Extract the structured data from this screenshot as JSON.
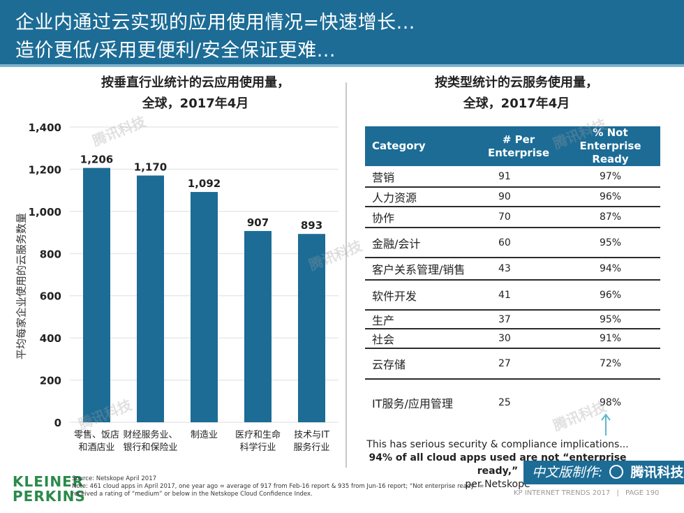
{
  "header": {
    "title_line1": "企业内通过云实现的应用使用情况=快速增长...",
    "title_line2": "造价更低/采用更便利/安全保证更难..."
  },
  "left_chart_title_line1": "按垂直行业统计的云应用使用量，",
  "left_chart_title_line2": "全球，2017年4月",
  "right_chart_title_line1": "按类型统计的云服务使用量，",
  "right_chart_title_line2": "全球，2017年4月",
  "chart_data": [
    {
      "type": "bar",
      "title": "按垂直行业统计的云应用使用量，全球，2017年4月",
      "xlabel": "",
      "ylabel": "平均每家企业使用的云服务数量",
      "ylim": [
        0,
        1400
      ],
      "yticks": [
        0,
        200,
        400,
        600,
        800,
        1000,
        1200,
        1400
      ],
      "ytick_labels": [
        "0",
        "200",
        "400",
        "600",
        "800",
        "1,000",
        "1,200",
        "1,400"
      ],
      "categories": [
        [
          "零售、饭店",
          "和酒店业"
        ],
        [
          "财经服务业、",
          "银行和保险业"
        ],
        [
          "制造业"
        ],
        [
          "医疗和生命",
          "科学行业"
        ],
        [
          "技术与IT",
          "服务行业"
        ]
      ],
      "values": [
        1206,
        1170,
        1092,
        907,
        893
      ],
      "value_labels": [
        "1,206",
        "1,170",
        "1,092",
        "907",
        "893"
      ],
      "bar_color": "#1c6c96"
    },
    {
      "type": "table",
      "title": "按类型统计的云服务使用量，全球，2017年4月",
      "columns": [
        "Category",
        "# Per Enterprise",
        "% Not Enterprise Ready"
      ],
      "rows": [
        [
          "营销",
          "91",
          "97%"
        ],
        [
          "人力资源",
          "90",
          "96%"
        ],
        [
          "协作",
          "70",
          "87%"
        ],
        [
          "金融/会计",
          "60",
          "95%"
        ],
        [
          "客户关系管理/销售",
          "43",
          "94%"
        ],
        [
          "软件开发",
          "41",
          "96%"
        ],
        [
          "生产",
          "37",
          "95%"
        ],
        [
          "社会",
          "30",
          "91%"
        ],
        [
          "云存储",
          "27",
          "72%"
        ],
        [
          "IT服务/应用管理",
          "25",
          "98%"
        ]
      ]
    }
  ],
  "table_header": {
    "col1": "Category",
    "col2_line1": "# Per",
    "col2_line2": "Enterprise",
    "col3_line1": "% Not Enterprise",
    "col3_line2": "Ready"
  },
  "note": {
    "line1": "This has serious security & compliance implications...",
    "line2": "94% of all cloud apps used are not “enterprise ready,”",
    "line3": "per Netskope"
  },
  "credit_badge": {
    "prefix": "中文版制作:",
    "logo": "腾讯科技"
  },
  "brand": {
    "line1": "KLEINER",
    "line2": "PERKINS"
  },
  "source": {
    "line1": "Source: Netskope April 2017",
    "line2": "Note: 461 cloud apps in April 2017, one year ago = average of 917 from Feb-16 report & 935 from Jun-16 report; “Not enterprise ready” =",
    "line3": "received a rating of “medium” or below in the Netskope Cloud Confidence Index."
  },
  "footer": {
    "report": "KP INTERNET TRENDS 2017",
    "separator": "|",
    "page": "PAGE 190"
  },
  "watermark": "腾讯科技",
  "colors": {
    "accent": "#1c6c96",
    "brand_green": "#2a8a4a",
    "arrow": "#5fb8c8"
  }
}
